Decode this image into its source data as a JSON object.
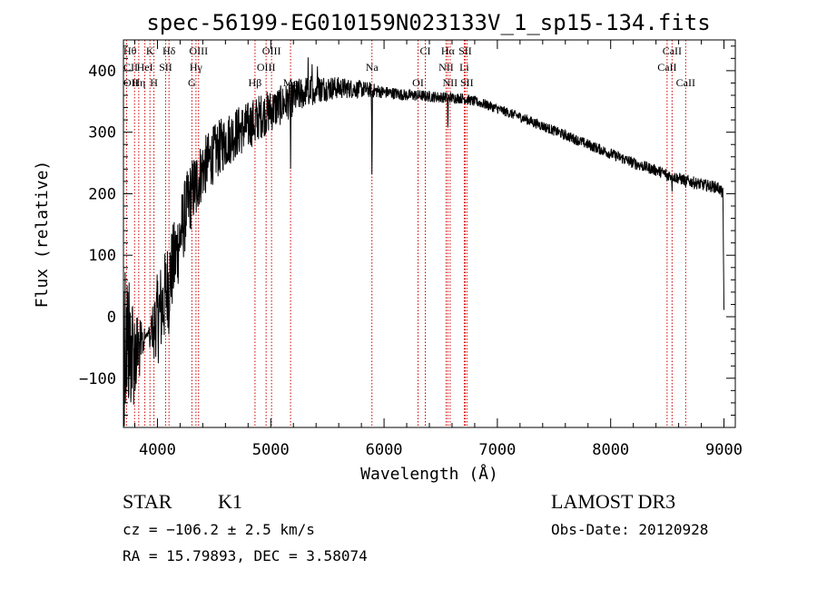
{
  "chart_data": {
    "type": "line",
    "title": "spec-56199-EG010159N023133V_1_sp15-134.fits",
    "xlabel": "Wavelength (Å)",
    "ylabel": "Flux (relative)",
    "xlim": [
      3700,
      9100
    ],
    "ylim": [
      -180,
      450
    ],
    "xticks": [
      4000,
      5000,
      6000,
      7000,
      8000,
      9000
    ],
    "yticks": [
      -100,
      0,
      100,
      200,
      300,
      400
    ],
    "series": [
      {
        "name": "flux",
        "anchors": [
          [
            3700,
            -20
          ],
          [
            3750,
            -40
          ],
          [
            3800,
            -60
          ],
          [
            3850,
            -50
          ],
          [
            3900,
            -30
          ],
          [
            3950,
            -20
          ],
          [
            4000,
            0
          ],
          [
            4050,
            20
          ],
          [
            4100,
            60
          ],
          [
            4150,
            90
          ],
          [
            4200,
            130
          ],
          [
            4250,
            170
          ],
          [
            4300,
            200
          ],
          [
            4350,
            220
          ],
          [
            4400,
            240
          ],
          [
            4500,
            265
          ],
          [
            4600,
            285
          ],
          [
            4700,
            300
          ],
          [
            4800,
            310
          ],
          [
            4900,
            325
          ],
          [
            5000,
            335
          ],
          [
            5100,
            345
          ],
          [
            5200,
            355
          ],
          [
            5300,
            365
          ],
          [
            5400,
            370
          ],
          [
            5500,
            372
          ],
          [
            5600,
            372
          ],
          [
            5700,
            371
          ],
          [
            5800,
            370
          ],
          [
            5900,
            368
          ],
          [
            6000,
            365
          ],
          [
            6100,
            363
          ],
          [
            6200,
            360
          ],
          [
            6300,
            360
          ],
          [
            6400,
            358
          ],
          [
            6500,
            357
          ],
          [
            6600,
            356
          ],
          [
            6700,
            355
          ],
          [
            6800,
            350
          ],
          [
            6900,
            345
          ],
          [
            7000,
            338
          ],
          [
            7200,
            325
          ],
          [
            7400,
            310
          ],
          [
            7600,
            295
          ],
          [
            7800,
            280
          ],
          [
            8000,
            265
          ],
          [
            8200,
            250
          ],
          [
            8400,
            238
          ],
          [
            8600,
            225
          ],
          [
            8800,
            215
          ],
          [
            8950,
            210
          ],
          [
            8990,
            200
          ],
          [
            9000,
            15
          ]
        ],
        "noise_regions": [
          [
            3700,
            -180
          ],
          [
            4000,
            80
          ],
          [
            4400,
            50
          ],
          [
            5000,
            35
          ],
          [
            5600,
            18
          ],
          [
            6000,
            10
          ],
          [
            7000,
            8
          ],
          [
            9000,
            10
          ]
        ],
        "absorption_lines": [
          [
            3934,
            -60
          ],
          [
            3969,
            -50
          ],
          [
            4101,
            -40
          ],
          [
            4340,
            -40
          ],
          [
            4861,
            -50
          ],
          [
            5175,
            -110
          ],
          [
            5893,
            -160
          ],
          [
            6563,
            -60
          ],
          [
            8498,
            -15
          ],
          [
            8542,
            -20
          ],
          [
            8662,
            -20
          ]
        ]
      }
    ],
    "line_markers": [
      {
        "label": "Hθ",
        "wavelength": 3798,
        "row": 1,
        "side": "left"
      },
      {
        "label": "K",
        "wavelength": 3934,
        "row": 1,
        "side": "center"
      },
      {
        "label": "Hδ",
        "wavelength": 4102,
        "row": 1,
        "side": "center"
      },
      {
        "label": "OIII",
        "wavelength": 4363,
        "row": 1,
        "side": "center"
      },
      {
        "label": "OIII",
        "wavelength": 5007,
        "row": 1,
        "side": "center"
      },
      {
        "label": "CI",
        "wavelength": 6364,
        "row": 1,
        "side": "center"
      },
      {
        "label": "Hα",
        "wavelength": 6563,
        "row": 1,
        "side": "center"
      },
      {
        "label": "SII",
        "wavelength": 6716,
        "row": 1,
        "side": "center"
      },
      {
        "label": "CaII",
        "wavelength": 8542,
        "row": 1,
        "side": "center"
      },
      {
        "label": "CII",
        "wavelength": 3727,
        "row": 2,
        "side": "left"
      },
      {
        "label": "HeI",
        "wavelength": 3889,
        "row": 2,
        "side": "center"
      },
      {
        "label": "SII",
        "wavelength": 4072,
        "row": 2,
        "side": "center"
      },
      {
        "label": "Hγ",
        "wavelength": 4340,
        "row": 2,
        "side": "center"
      },
      {
        "label": "OIII",
        "wavelength": 4959,
        "row": 2,
        "side": "center"
      },
      {
        "label": "Na",
        "wavelength": 5893,
        "row": 2,
        "side": "center"
      },
      {
        "label": "NII",
        "wavelength": 6548,
        "row": 2,
        "side": "center"
      },
      {
        "label": "Li",
        "wavelength": 6708,
        "row": 2,
        "side": "center"
      },
      {
        "label": "CaII",
        "wavelength": 8498,
        "row": 2,
        "side": "center"
      },
      {
        "label": "OII",
        "wavelength": 3727,
        "row": 3,
        "side": "left"
      },
      {
        "label": "Hη",
        "wavelength": 3835,
        "row": 3,
        "side": "center"
      },
      {
        "label": "H",
        "wavelength": 3969,
        "row": 3,
        "side": "center"
      },
      {
        "label": "G",
        "wavelength": 4304,
        "row": 3,
        "side": "center"
      },
      {
        "label": "Hβ",
        "wavelength": 4861,
        "row": 3,
        "side": "center"
      },
      {
        "label": "Mg",
        "wavelength": 5175,
        "row": 3,
        "side": "center"
      },
      {
        "label": "OI",
        "wavelength": 6300,
        "row": 3,
        "side": "center"
      },
      {
        "label": "NII",
        "wavelength": 6583,
        "row": 3,
        "side": "center"
      },
      {
        "label": "SII",
        "wavelength": 6731,
        "row": 3,
        "side": "center"
      },
      {
        "label": "CaII",
        "wavelength": 8662,
        "row": 3,
        "side": "center"
      }
    ],
    "marker_lines": [
      3727,
      3798,
      3835,
      3889,
      3934,
      3969,
      4072,
      4102,
      4304,
      4340,
      4363,
      4861,
      4959,
      5007,
      5175,
      5893,
      6300,
      6364,
      6548,
      6563,
      6583,
      6708,
      6716,
      6731,
      8498,
      8542,
      8662
    ],
    "grid": false,
    "marker_color": "#d00000"
  },
  "info": {
    "object_class": "STAR",
    "subclass": "K1",
    "survey": "LAMOST DR3",
    "redshift": "cz = −106.2 ± 2.5 km/s",
    "obs_date": "Obs-Date: 20120928",
    "coords": "RA =  15.79893, DEC =   3.58074"
  }
}
